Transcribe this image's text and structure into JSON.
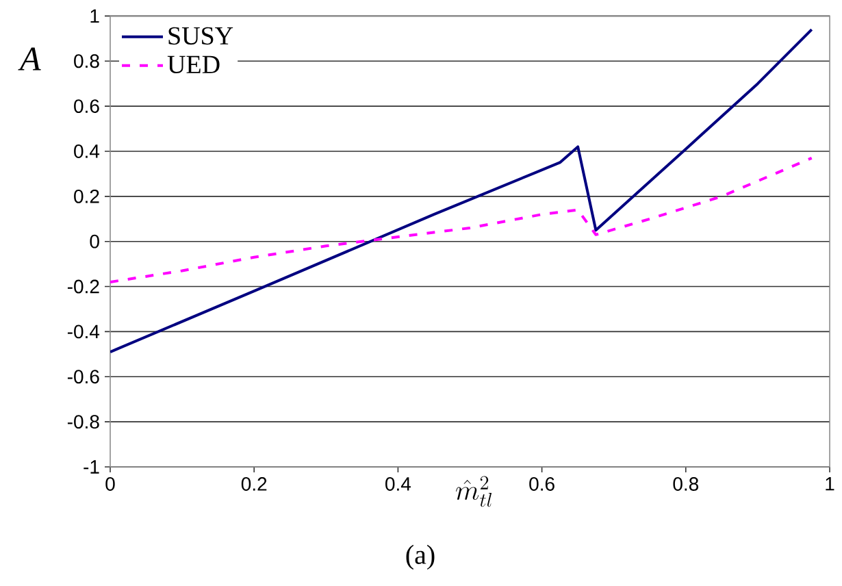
{
  "chart_data": {
    "type": "line",
    "xlabel": "\\hat{m}_{tl}^2",
    "ylabel": "A",
    "annotations": [
      "(a)"
    ],
    "series": [
      {
        "name": "SUSY",
        "color": "#000080",
        "line_style": "solid",
        "x": [
          0,
          0.2,
          0.45,
          0.625,
          0.65,
          0.675,
          0.8,
          0.9,
          0.975
        ],
        "values": [
          -0.49,
          -0.22,
          0.12,
          0.35,
          0.42,
          0.05,
          0.41,
          0.7,
          0.94
        ]
      },
      {
        "name": "UED",
        "color": "#ff00ff",
        "line_style": "dashed",
        "x": [
          0,
          0.1,
          0.2,
          0.3,
          0.4,
          0.5,
          0.6,
          0.65,
          0.675,
          0.75,
          0.85,
          0.975
        ],
        "values": [
          -0.18,
          -0.13,
          -0.07,
          -0.02,
          0.02,
          0.06,
          0.12,
          0.14,
          0.03,
          0.1,
          0.2,
          0.37
        ]
      }
    ],
    "xlim": [
      0,
      1
    ],
    "ylim": [
      -1,
      1
    ],
    "xticks": [
      0,
      0.2,
      0.4,
      0.6,
      0.8,
      1
    ],
    "yticks": [
      -1,
      -0.8,
      -0.6,
      -0.4,
      -0.2,
      0,
      0.2,
      0.4,
      0.6,
      0.8,
      1
    ],
    "grid": "y",
    "legend": "top left"
  }
}
